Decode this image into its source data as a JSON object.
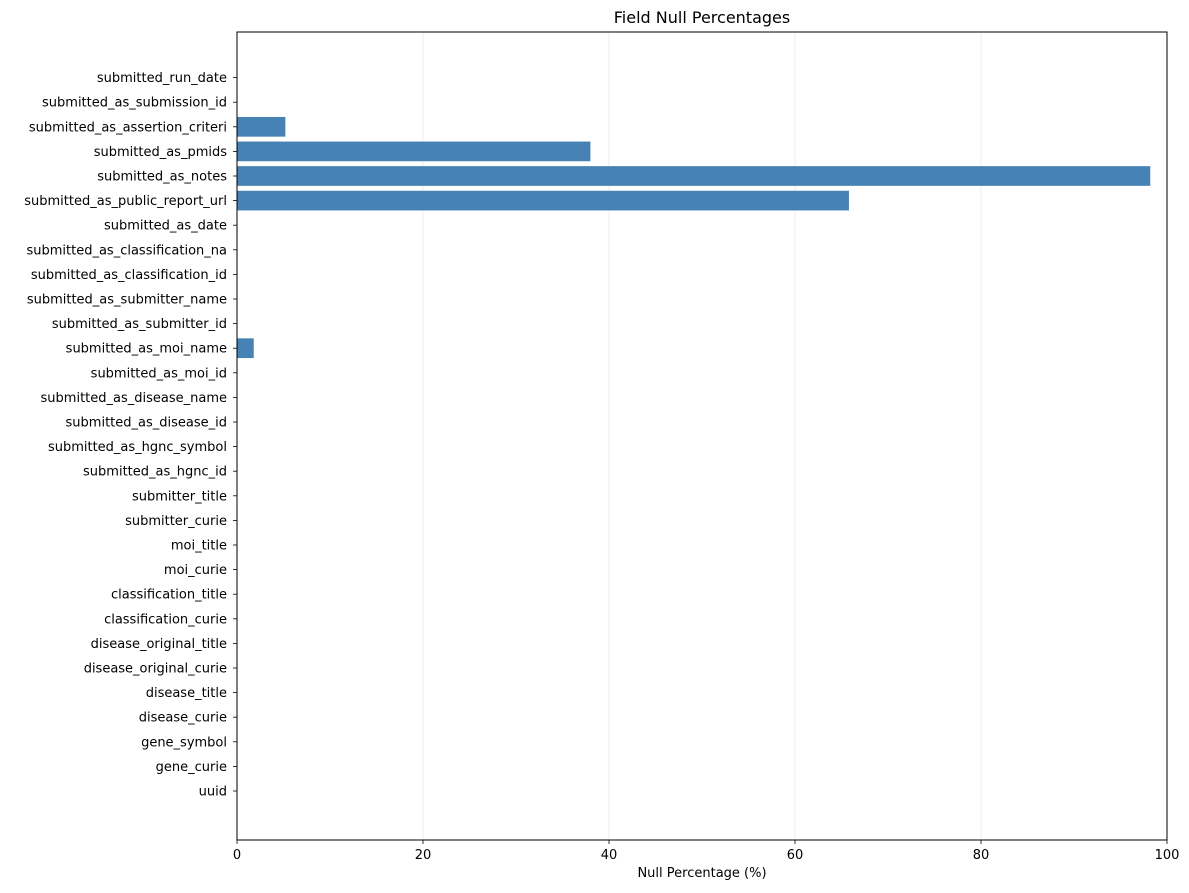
{
  "chart_data": {
    "type": "bar",
    "orientation": "horizontal",
    "title": "Field Null Percentages",
    "xlabel": "Null Percentage (%)",
    "ylabel": "",
    "xlim": [
      0,
      100
    ],
    "xticks": [
      0,
      20,
      40,
      60,
      80,
      100
    ],
    "grid": "vertical",
    "bar_color": "#4682b4",
    "categories": [
      "uuid",
      "gene_curie",
      "gene_symbol",
      "disease_curie",
      "disease_title",
      "disease_original_curie",
      "disease_original_title",
      "classification_curie",
      "classification_title",
      "moi_curie",
      "moi_title",
      "submitter_curie",
      "submitter_title",
      "submitted_as_hgnc_id",
      "submitted_as_hgnc_symbol",
      "submitted_as_disease_id",
      "submitted_as_disease_name",
      "submitted_as_moi_id",
      "submitted_as_moi_name",
      "submitted_as_submitter_id",
      "submitted_as_submitter_name",
      "submitted_as_classification_id",
      "submitted_as_classification_na",
      "submitted_as_date",
      "submitted_as_public_report_url",
      "submitted_as_notes",
      "submitted_as_pmids",
      "submitted_as_assertion_criteri",
      "submitted_as_submission_id",
      "submitted_run_date"
    ],
    "values": [
      0,
      0,
      0,
      0,
      0,
      0,
      0,
      0,
      0,
      0,
      0,
      0,
      0,
      0,
      0,
      0,
      0,
      0,
      1.8,
      0,
      0,
      0,
      0,
      0,
      65.8,
      98.2,
      38.0,
      5.2,
      0,
      0
    ]
  }
}
